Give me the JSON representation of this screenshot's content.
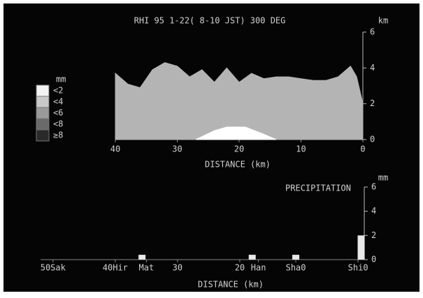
{
  "chart_data": [
    {
      "type": "area",
      "title": "RHI  95 1-22( 8-10 JST) 300 DEG",
      "xlabel": "DISTANCE (km)",
      "ylabel": "km",
      "xlim": [
        40,
        0
      ],
      "xticks": [
        40,
        30,
        20,
        10,
        0
      ],
      "ylim": [
        0,
        6
      ],
      "yticks": [
        0,
        2,
        4,
        6
      ],
      "legend": {
        "title": "mm",
        "items": [
          {
            "label": "<2",
            "color": "#f2f2f2"
          },
          {
            "label": "<4",
            "color": "#c8c8c8"
          },
          {
            "label": "<6",
            "color": "#9a9a9a"
          },
          {
            "label": "<8",
            "color": "#6a6a6a"
          },
          {
            "label": "≥8",
            "color": "#2a2a2a"
          }
        ]
      },
      "series": [
        {
          "color": "#b4b4b4",
          "x": [
            40,
            38,
            36,
            34,
            32,
            30,
            28,
            26,
            24,
            22,
            20,
            18,
            16,
            14,
            12,
            10,
            8,
            6,
            4,
            2,
            1,
            0
          ],
          "values": [
            3.7,
            3.1,
            2.9,
            3.9,
            4.3,
            4.1,
            3.5,
            3.9,
            3.2,
            4.0,
            3.2,
            3.7,
            3.4,
            3.5,
            3.5,
            3.4,
            3.3,
            3.3,
            3.5,
            4.1,
            3.5,
            2.0
          ]
        },
        {
          "color": "#ffffff",
          "x": [
            27,
            24,
            22,
            19,
            16,
            14
          ],
          "values": [
            0,
            0.5,
            0.7,
            0.7,
            0.3,
            0
          ]
        }
      ]
    },
    {
      "type": "bar",
      "title": "PRECIPITATION",
      "xlabel": "DISTANCE (km)",
      "ylabel": "mm",
      "xlim": [
        52,
        0
      ],
      "xticks": [
        {
          "value": 50,
          "label": "50Sak"
        },
        {
          "value": 40,
          "label": "40Hir"
        },
        {
          "value": 35,
          "label": "Mat"
        },
        30,
        20,
        {
          "value": 17,
          "label": "Han"
        },
        {
          "value": 11,
          "label": "Sha0"
        },
        {
          "value": 1,
          "label": "Shi0"
        }
      ],
      "ylim": [
        0,
        6
      ],
      "yticks": [
        0,
        2,
        4,
        6
      ],
      "color": "#e8e8e8",
      "x": [
        35.7,
        18,
        11,
        0.5
      ],
      "values": [
        0.4,
        0.4,
        0.4,
        2.0
      ]
    }
  ]
}
